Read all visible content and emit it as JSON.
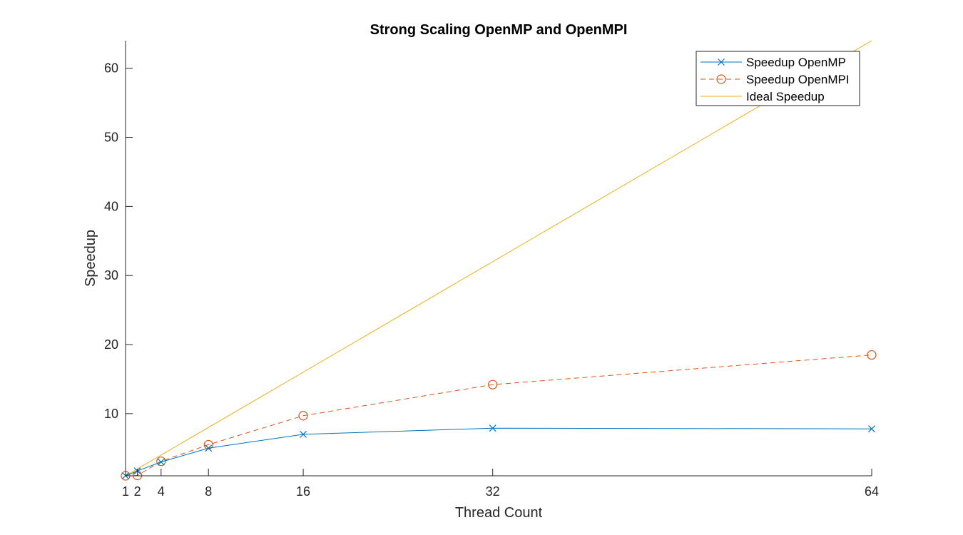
{
  "chart_data": {
    "type": "line",
    "title": "Strong Scaling OpenMP and OpenMPI",
    "xlabel": "Thread Count",
    "ylabel": "Speedup",
    "x": [
      1,
      2,
      4,
      8,
      16,
      32,
      64
    ],
    "x_ticks": [
      "1",
      "2",
      "4",
      "8",
      "16",
      "32",
      "64"
    ],
    "y_ticks": [
      "10",
      "20",
      "30",
      "40",
      "50",
      "60"
    ],
    "y_tick_values": [
      10,
      20,
      30,
      40,
      50,
      60
    ],
    "xlim": [
      1,
      64
    ],
    "ylim": [
      1,
      64
    ],
    "grid": false,
    "legend_position": "top-right",
    "series": [
      {
        "name": "Speedup OpenMP",
        "x": [
          1,
          2,
          4,
          8,
          16,
          32,
          64
        ],
        "values": [
          1,
          1.7,
          3.0,
          5.0,
          7.0,
          7.9,
          7.8
        ],
        "color": "#0072BD",
        "style": "solid",
        "marker": "x"
      },
      {
        "name": "Speedup OpenMPI",
        "x": [
          1,
          2,
          4,
          8,
          16,
          32,
          64
        ],
        "values": [
          1,
          1.05,
          3.1,
          5.5,
          9.7,
          14.2,
          18.5
        ],
        "color": "#D95319",
        "style": "dashed",
        "marker": "o"
      },
      {
        "name": "Ideal Speedup",
        "x": [
          1,
          64
        ],
        "values": [
          1,
          64
        ],
        "color": "#EDB120",
        "style": "solid",
        "marker": "none"
      }
    ]
  }
}
